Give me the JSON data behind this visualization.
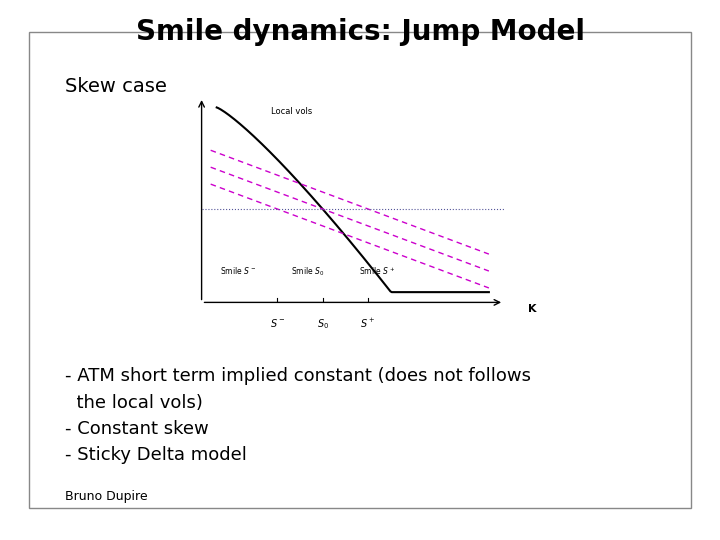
{
  "title": "Smile dynamics: Jump Model",
  "subtitle": "Skew case",
  "local_vols_label": "Local vols",
  "k_label": "K",
  "x_ticks": [
    "S⁻",
    "S₀",
    "S⁺"
  ],
  "smile_labels": [
    "Smile S⁻",
    "Smile S₀",
    "Smile S⁺"
  ],
  "bullet_points": [
    "- ATM short term implied constant (does not follows\n  the local vols)",
    "- Constant skew",
    "- Sticky Delta model"
  ],
  "footer": "Bruno Dupire",
  "bg_color": "#ffffff",
  "box_color": "#cccccc",
  "title_fontsize": 20,
  "subtitle_fontsize": 14,
  "body_fontsize": 13,
  "footer_fontsize": 9
}
